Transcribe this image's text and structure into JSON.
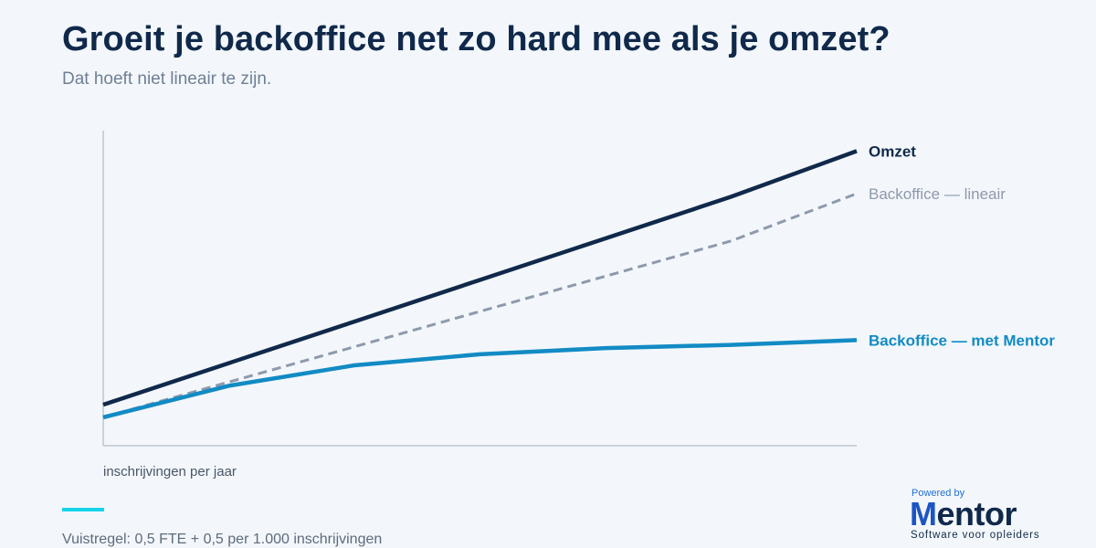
{
  "header": {
    "title": "Groeit je backoffice net zo hard mee als je omzet?",
    "subtitle": "Dat hoeft niet lineair te zijn."
  },
  "chart_data": {
    "type": "line",
    "x": [
      0,
      1,
      2,
      3,
      4,
      5,
      6
    ],
    "xlabel": "inschrijvingen per jaar",
    "ylabel": "",
    "ylim": [
      0,
      100
    ],
    "grid": false,
    "legend": "inline-right",
    "series": [
      {
        "name": "Omzet",
        "values": [
          13,
          26.2,
          39.4,
          52.6,
          65.8,
          79,
          93.5
        ],
        "color": "#10294b",
        "style": "solid",
        "label_weight": "bold",
        "label_color": "#10294b"
      },
      {
        "name": "Backoffice — lineair",
        "values": [
          9,
          20.2,
          31.4,
          42.6,
          53.8,
          65,
          80
        ],
        "color": "#8e99ad",
        "style": "dashed",
        "label_weight": "normal",
        "label_color": "#8e99ad"
      },
      {
        "name": "Backoffice — met Mentor",
        "values": [
          9,
          19,
          25.5,
          29,
          31,
          32,
          33.5
        ],
        "color": "#128bc4",
        "style": "solid",
        "label_weight": "bold",
        "label_color": "#128bc4"
      }
    ]
  },
  "footer": {
    "note": "Vuistregel: 0,5 FTE + 0,5 per 1.000 inschrijvingen",
    "accent_color": "#17d3ea"
  },
  "logo": {
    "powered_by": "Powered by",
    "brand_first": "M",
    "brand_rest": "entor",
    "tagline": "Software voor opleiders"
  }
}
